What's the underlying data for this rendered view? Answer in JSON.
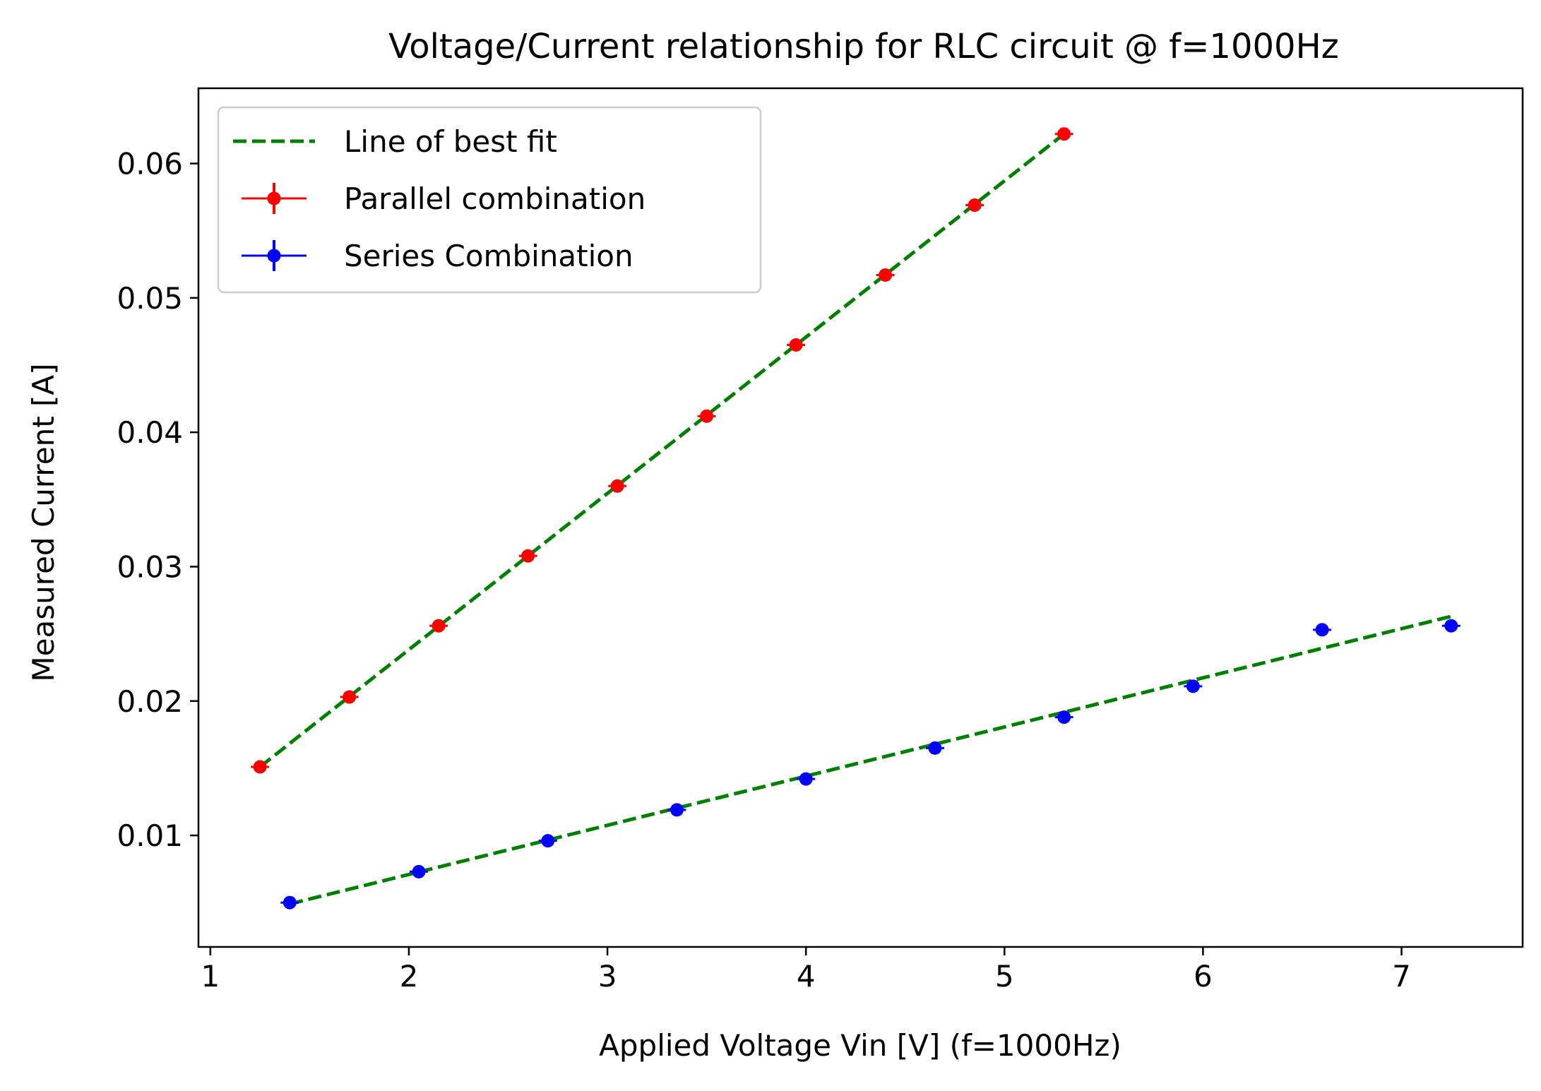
{
  "chart_data": {
    "type": "scatter",
    "title": "Voltage/Current relationship for RLC circuit @ f=1000Hz",
    "xlabel": "Applied Voltage Vin [V] (f=1000Hz)",
    "ylabel": "Measured Current [A]",
    "xlim": [
      0.94,
      7.61
    ],
    "ylim": [
      0.0017,
      0.0656
    ],
    "x_ticks": [
      "1",
      "2",
      "3",
      "4",
      "5",
      "6",
      "7"
    ],
    "y_ticks": [
      "0.01",
      "0.02",
      "0.03",
      "0.04",
      "0.05",
      "0.06"
    ],
    "grid": false,
    "legend": "upper left",
    "series": [
      {
        "name": "Parallel combination",
        "color": "#ff0000",
        "marker": "circle",
        "errorbars": true,
        "x": [
          1.25,
          1.7,
          2.15,
          2.6,
          3.05,
          3.5,
          3.95,
          4.4,
          4.85,
          5.3
        ],
        "y": [
          0.0151,
          0.0203,
          0.0256,
          0.0308,
          0.036,
          0.0412,
          0.0465,
          0.0517,
          0.0569,
          0.0622
        ]
      },
      {
        "name": "Series Combination",
        "color": "#0000ff",
        "marker": "circle",
        "errorbars": true,
        "x": [
          1.4,
          2.05,
          2.7,
          3.35,
          4.0,
          4.65,
          5.3,
          5.95,
          6.6,
          7.25
        ],
        "y": [
          0.005,
          0.0073,
          0.0096,
          0.0119,
          0.0142,
          0.0165,
          0.0188,
          0.0211,
          0.0253,
          0.0256
        ]
      }
    ],
    "fit_lines": [
      {
        "name": "Line of best fit",
        "color": "#008000",
        "style": "dashed",
        "x": [
          1.25,
          5.3
        ],
        "y": [
          0.0151,
          0.0622
        ]
      },
      {
        "name": "",
        "color": "#008000",
        "style": "dashed",
        "x": [
          1.4,
          7.25
        ],
        "y": [
          0.0049,
          0.0263
        ]
      }
    ],
    "legend_entries": [
      "Line of best fit",
      "Parallel combination",
      "Series Combination"
    ]
  }
}
